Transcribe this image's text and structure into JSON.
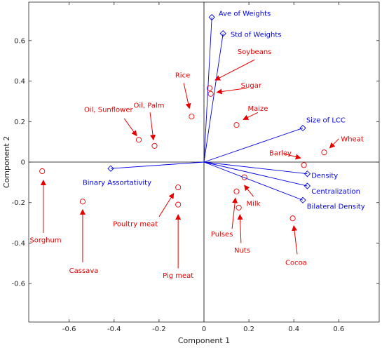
{
  "chart_data": {
    "type": "biplot",
    "xlabel": "Component 1",
    "ylabel": "Component 2",
    "xlim": [
      -0.78,
      0.78
    ],
    "ylim": [
      -0.79,
      0.79
    ],
    "x_ticks": [
      -0.6,
      -0.4,
      -0.2,
      0,
      0.2,
      0.4,
      0.6
    ],
    "y_ticks": [
      -0.6,
      -0.4,
      -0.2,
      0,
      0.2,
      0.4,
      0.6
    ],
    "x_tick_labels": [
      "-0.6",
      "-0.4",
      "-0.2",
      "0",
      "0.2",
      "0.4",
      "0.6"
    ],
    "y_tick_labels": [
      "-0.6",
      "-0.4",
      "-0.2",
      "0",
      "0.2",
      "0.4",
      "0.6"
    ],
    "grid": false,
    "colors": {
      "observations": "#e60000",
      "variables": "#0000e6",
      "axes": "#262626"
    },
    "variables": [
      {
        "name": "Ave of Weights",
        "x": 0.035,
        "y": 0.715,
        "label": [
          0.065,
          0.735
        ]
      },
      {
        "name": "Std of Weights",
        "x": 0.085,
        "y": 0.635,
        "label": [
          0.118,
          0.63
        ]
      },
      {
        "name": "Size of LCC",
        "x": 0.44,
        "y": 0.168,
        "label": [
          0.455,
          0.208
        ]
      },
      {
        "name": "Density",
        "x": 0.46,
        "y": -0.058,
        "label": [
          0.478,
          -0.065
        ]
      },
      {
        "name": "Centralization",
        "x": 0.46,
        "y": -0.118,
        "label": [
          0.478,
          -0.143
        ]
      },
      {
        "name": "Bilateral Density",
        "x": 0.44,
        "y": -0.188,
        "label": [
          0.458,
          -0.218
        ]
      },
      {
        "name": "Binary Assortativity",
        "x": -0.415,
        "y": -0.032,
        "label": [
          -0.54,
          -0.1
        ]
      }
    ],
    "observations": [
      {
        "name": "Soybeans",
        "x": 0.025,
        "y": 0.365,
        "label": [
          0.225,
          0.545
        ],
        "arrow": [
          [
            0.225,
            0.505
          ],
          [
            0.05,
            0.405
          ]
        ]
      },
      {
        "name": "Sugar",
        "x": 0.03,
        "y": 0.337,
        "label": [
          0.21,
          0.38
        ],
        "arrow": [
          [
            0.19,
            0.365
          ],
          [
            0.058,
            0.345
          ]
        ]
      },
      {
        "name": "Rice",
        "x": -0.055,
        "y": 0.225,
        "label": [
          -0.095,
          0.43
        ],
        "arrow": [
          [
            -0.09,
            0.39
          ],
          [
            -0.065,
            0.265
          ]
        ]
      },
      {
        "name": "Oil, Palm",
        "x": -0.22,
        "y": 0.08,
        "label": [
          -0.245,
          0.28
        ],
        "arrow": [
          [
            -0.24,
            0.245
          ],
          [
            -0.225,
            0.11
          ]
        ]
      },
      {
        "name": "Oil, Sunflower",
        "x": -0.29,
        "y": 0.11,
        "label": [
          -0.425,
          0.26
        ],
        "arrow": [
          [
            -0.355,
            0.215
          ],
          [
            -0.3,
            0.13
          ]
        ]
      },
      {
        "name": "Maize",
        "x": 0.145,
        "y": 0.183,
        "label": [
          0.24,
          0.265
        ],
        "arrow": [
          [
            0.24,
            0.245
          ],
          [
            0.175,
            0.21
          ]
        ]
      },
      {
        "name": "Wheat",
        "x": 0.535,
        "y": 0.048,
        "label": [
          0.66,
          0.115
        ],
        "arrow": [
          [
            0.6,
            0.115
          ],
          [
            0.56,
            0.07
          ]
        ]
      },
      {
        "name": "Barley",
        "x": 0.445,
        "y": -0.015,
        "label": [
          0.34,
          0.045
        ],
        "arrow": [
          [
            0.36,
            0.04
          ],
          [
            0.43,
            0.02
          ]
        ]
      },
      {
        "name": "Milk",
        "x": 0.18,
        "y": -0.075,
        "label": [
          0.22,
          -0.205
        ],
        "arrow": [
          [
            0.22,
            -0.17
          ],
          [
            0.18,
            -0.115
          ]
        ]
      },
      {
        "name": "Pulses",
        "x": 0.145,
        "y": -0.145,
        "label": [
          0.08,
          -0.355
        ],
        "arrow": [
          [
            0.125,
            -0.33
          ],
          [
            0.14,
            -0.178
          ]
        ]
      },
      {
        "name": "Nuts",
        "x": 0.155,
        "y": -0.225,
        "label": [
          0.17,
          -0.435
        ],
        "arrow": [
          [
            0.165,
            -0.4
          ],
          [
            0.16,
            -0.26
          ]
        ]
      },
      {
        "name": "Cocoa",
        "x": 0.395,
        "y": -0.278,
        "label": [
          0.41,
          -0.495
        ],
        "arrow": [
          [
            0.415,
            -0.455
          ],
          [
            0.4,
            -0.315
          ]
        ]
      },
      {
        "name": "Poultry meat",
        "x": -0.115,
        "y": -0.125,
        "label": [
          -0.305,
          -0.305
        ],
        "arrow": [
          [
            -0.2,
            -0.27
          ],
          [
            -0.135,
            -0.155
          ]
        ]
      },
      {
        "name": "Pig meat",
        "x": -0.115,
        "y": -0.21,
        "label": [
          -0.115,
          -0.56
        ],
        "arrow": [
          [
            -0.115,
            -0.525
          ],
          [
            -0.115,
            -0.26
          ]
        ]
      },
      {
        "name": "Sorghum",
        "x": -0.72,
        "y": -0.045,
        "label": [
          -0.705,
          -0.385
        ],
        "arrow": [
          [
            -0.715,
            -0.35
          ],
          [
            -0.715,
            -0.09
          ]
        ]
      },
      {
        "name": "Cassava",
        "x": -0.54,
        "y": -0.195,
        "label": [
          -0.535,
          -0.535
        ],
        "arrow": [
          [
            -0.54,
            -0.495
          ],
          [
            -0.54,
            -0.235
          ]
        ]
      }
    ]
  }
}
